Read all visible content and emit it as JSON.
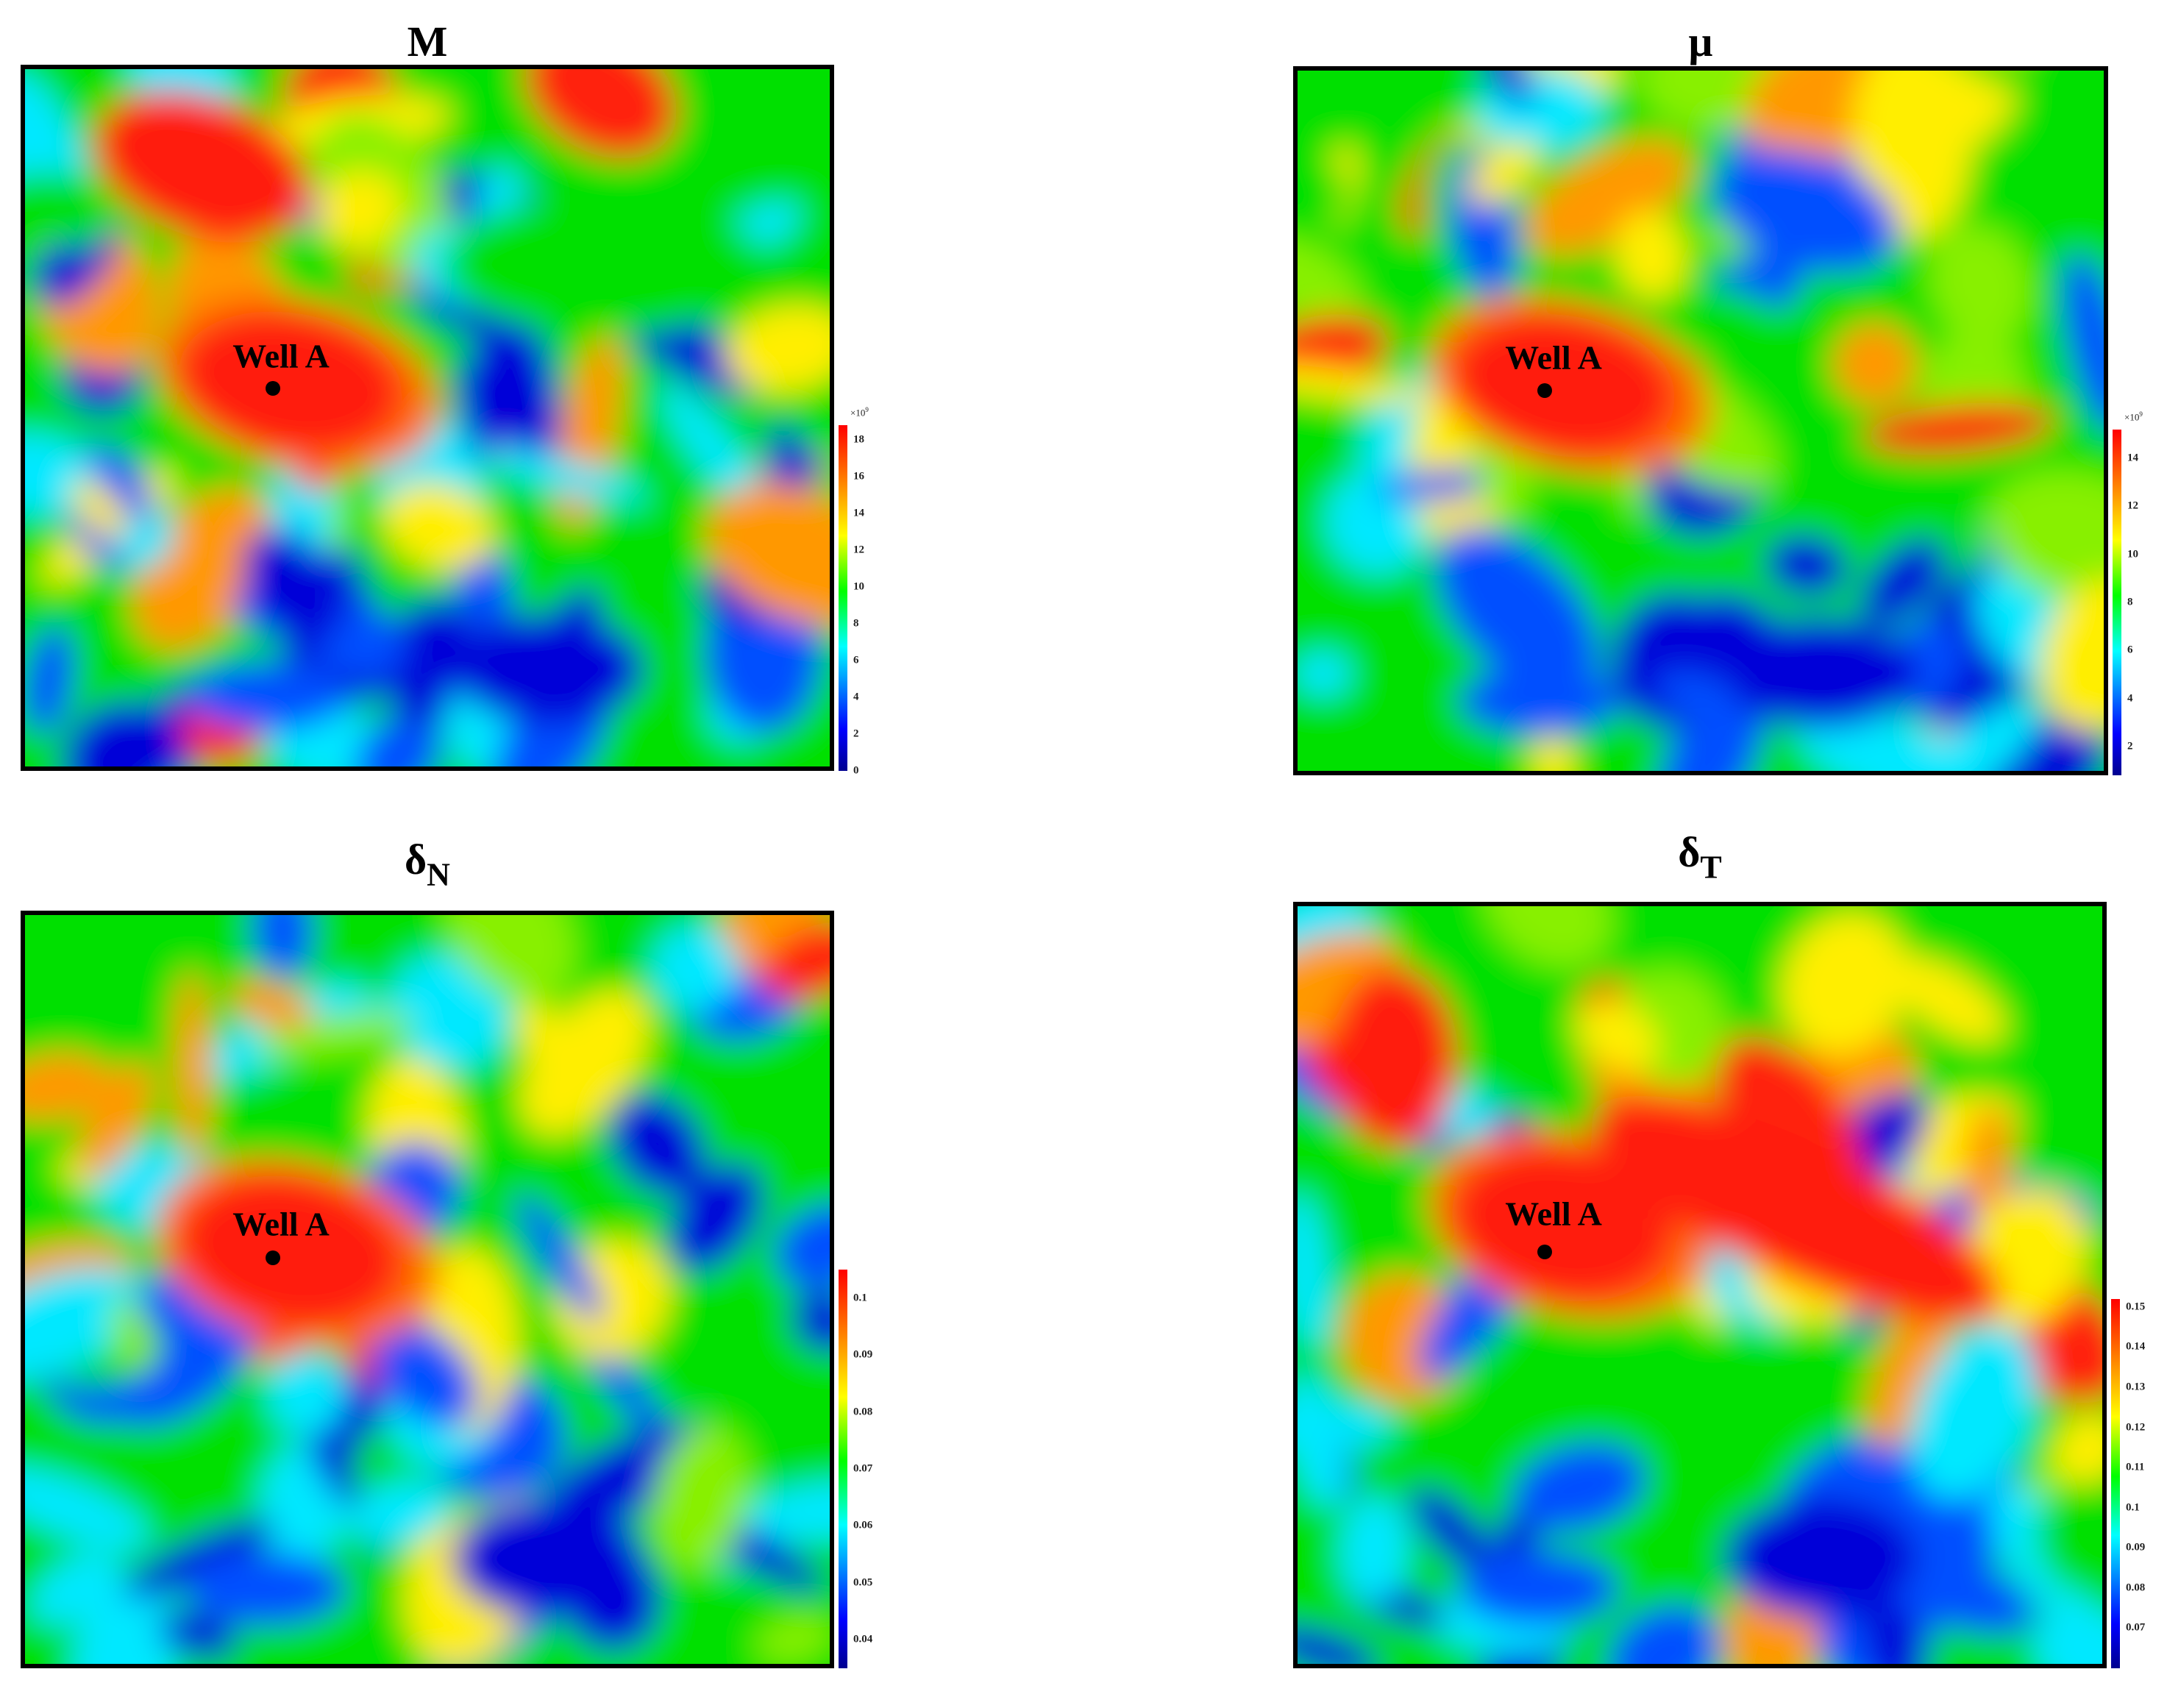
{
  "chart_data": [
    {
      "type": "heatmap",
      "title": "M",
      "title_sub": "",
      "annotation": "Well A",
      "colorbar": {
        "multiplier_base": "×10",
        "multiplier_exp": "9",
        "ticks": [
          "0",
          "2",
          "4",
          "6",
          "8",
          "10",
          "12",
          "14",
          "16",
          "18"
        ],
        "range": [
          0,
          18.8
        ]
      },
      "colormap": "jet"
    },
    {
      "type": "heatmap",
      "title": "μ",
      "title_sub": "",
      "annotation": "Well A",
      "colorbar": {
        "multiplier_base": "×10",
        "multiplier_exp": "9",
        "ticks": [
          "2",
          "4",
          "6",
          "8",
          "10",
          "12",
          "14"
        ],
        "range": [
          0.8,
          15.2
        ]
      },
      "colormap": "jet"
    },
    {
      "type": "heatmap",
      "title": "δ",
      "title_sub": "N",
      "annotation": "Well A",
      "colorbar": {
        "multiplier_base": "",
        "multiplier_exp": "",
        "ticks": [
          "0.04",
          "0.05",
          "0.06",
          "0.07",
          "0.08",
          "0.09",
          "0.1"
        ],
        "range": [
          0.035,
          0.105
        ]
      },
      "colormap": "jet"
    },
    {
      "type": "heatmap",
      "title": "δ",
      "title_sub": "T",
      "annotation": "Well A",
      "colorbar": {
        "multiplier_base": "",
        "multiplier_exp": "",
        "ticks": [
          "0.07",
          "0.08",
          "0.09",
          "0.1",
          "0.11",
          "0.12",
          "0.13",
          "0.14",
          "0.15"
        ],
        "range": [
          0.06,
          0.152
        ]
      },
      "colormap": "jet"
    }
  ]
}
